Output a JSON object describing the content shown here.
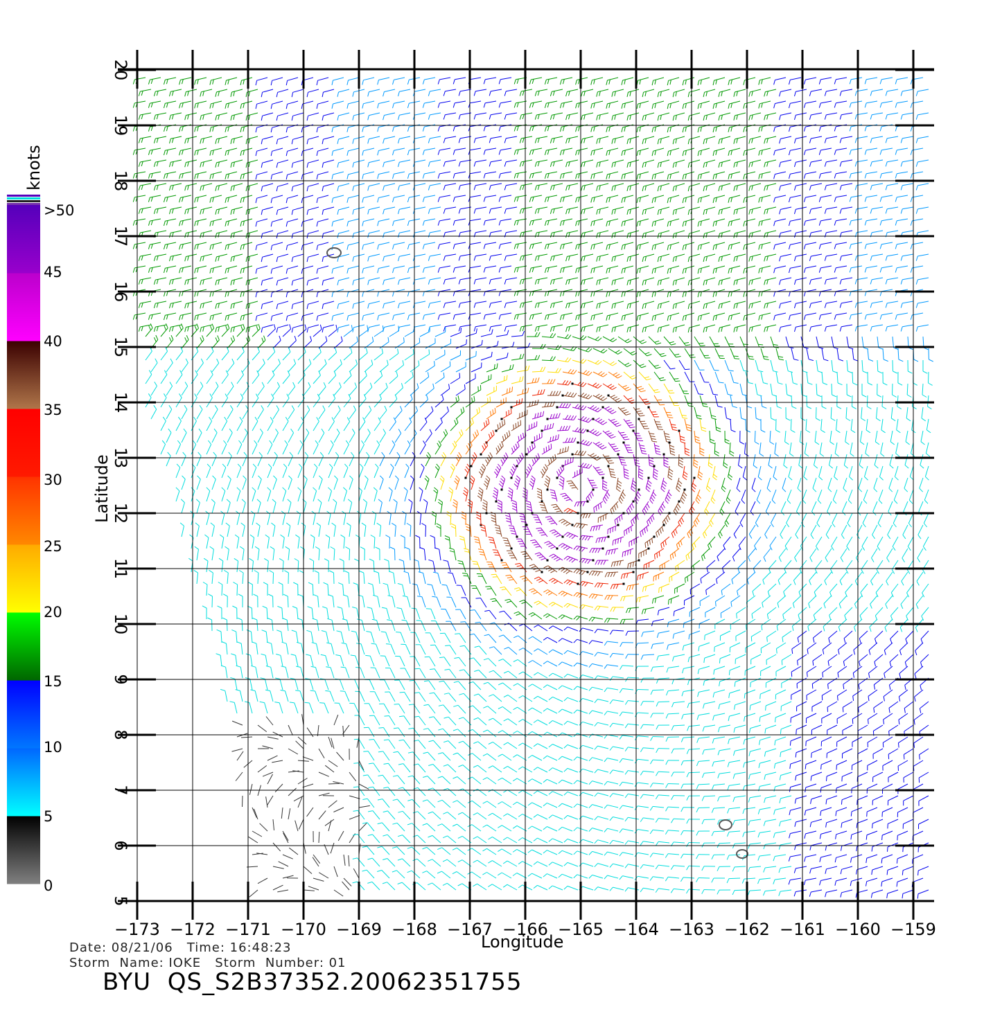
{
  "map": {
    "type": "wind-barb-map",
    "xlabel": "Longitude",
    "ylabel": "Latitude",
    "xlim": [
      -173,
      -158.6
    ],
    "ylim": [
      5,
      20
    ],
    "x_ticks": [
      "−173",
      "−172",
      "−171",
      "−170",
      "−169",
      "−168",
      "−167",
      "−166",
      "−165",
      "−164",
      "−163",
      "−162",
      "−161",
      "−160",
      "−159"
    ],
    "y_ticks": [
      "5",
      "6",
      "7",
      "8",
      "9",
      "10",
      "11",
      "12",
      "13",
      "14",
      "15",
      "16",
      "17",
      "18",
      "19",
      "20"
    ],
    "storm_center": {
      "lon": -165,
      "lat": 12.5
    },
    "grid": true
  },
  "colorbar": {
    "unit": "knots",
    "labels": [
      ">50",
      "45",
      "40",
      "35",
      "30",
      "25",
      "20",
      "15",
      "10",
      "5",
      "0"
    ],
    "bands": [
      {
        "from": 0,
        "to": 5,
        "colors": [
          "#808080",
          "#000000"
        ]
      },
      {
        "from": 5,
        "to": 10,
        "colors": [
          "#00ffff",
          "#0066ff"
        ]
      },
      {
        "from": 10,
        "to": 15,
        "colors": [
          "#0077ff",
          "#0000ff"
        ]
      },
      {
        "from": 15,
        "to": 20,
        "colors": [
          "#006600",
          "#00ff00"
        ]
      },
      {
        "from": 20,
        "to": 25,
        "colors": [
          "#ffff00",
          "#ffaa00"
        ]
      },
      {
        "from": 25,
        "to": 30,
        "colors": [
          "#ff8800",
          "#ff3300"
        ]
      },
      {
        "from": 30,
        "to": 35,
        "colors": [
          "#ff1a00",
          "#ff0000"
        ]
      },
      {
        "from": 35,
        "to": 40,
        "colors": [
          "#b0764a",
          "#3a0000"
        ]
      },
      {
        "from": 40,
        "to": 45,
        "colors": [
          "#ff00ff",
          "#bb00cc"
        ]
      },
      {
        "from": 45,
        "to": 50,
        "colors": [
          "#9900cc",
          "#5500bb"
        ]
      }
    ]
  },
  "footer": {
    "date_line": "Date: 08/21/06   Time: 16:48:23",
    "storm_line": "Storm  Name: IOKE   Storm  Number: 01",
    "title": "BYU  QS_S2B37352.20062351755"
  }
}
